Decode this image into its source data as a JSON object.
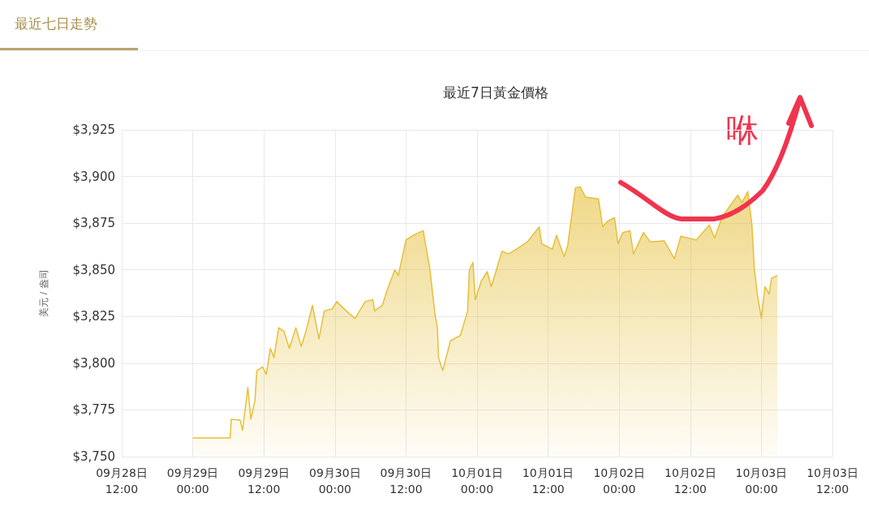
{
  "chart_data": {
    "type": "area",
    "title": "最近7日黃金價格",
    "subtitle": "最近七日走勢",
    "ylabel": "美元 / 盎司",
    "annotations": [
      "咻"
    ],
    "x": [
      "--09-29T00:00",
      "--09-29T06:18",
      "--09-29T06:30",
      "--09-29T08:00",
      "--09-29T08:24",
      "--09-29T09:18",
      "--09-29T09:48",
      "--09-29T10:30",
      "--09-29T10:48",
      "--09-29T11:48",
      "--09-29T12:24",
      "--09-29T13:06",
      "--09-29T13:42",
      "--09-29T14:30",
      "--09-29T15:24",
      "--09-29T16:18",
      "--09-29T17:24",
      "--09-29T18:18",
      "--09-29T19:06",
      "--09-29T20:12",
      "--09-29T21:18",
      "--09-29T22:12",
      "--09-29T23:30",
      "--09-30T00:18",
      "--09-30T01:54",
      "--09-30T03:24",
      "--09-30T05:06",
      "--09-30T06:24",
      "--09-30T06:42",
      "--09-30T08:00",
      "--09-30T08:48",
      "--09-30T10:06",
      "--09-30T10:42",
      "--09-30T12:00",
      "--09-30T13:12",
      "--09-30T14:54",
      "--09-30T15:12",
      "--09-30T16:00",
      "--09-30T16:54",
      "--09-30T17:18",
      "--09-30T17:30",
      "--09-30T18:12",
      "--09-30T19:30",
      "--09-30T21:12",
      "--09-30T22:24",
      "--09-30T22:42",
      "--09-30T23:18",
      "--09-30T23:42",
      "--10-01T00:42",
      "--10-01T01:42",
      "--10-01T02:24",
      "--10-01T04:12",
      "--10-01T05:18",
      "--10-01T06:36",
      "--10-01T08:30",
      "--10-01T10:30",
      "--10-01T10:54",
      "--10-01T12:42",
      "--10-01T13:24",
      "--10-01T14:42",
      "--10-01T15:18",
      "--10-01T16:36",
      "--10-01T17:24",
      "--10-01T18:18",
      "--10-01T20:30",
      "--10-01T21:12",
      "--10-01T22:00",
      "--10-01T23:12",
      "--10-01T23:48",
      "--10-02T00:36",
      "--10-02T01:48",
      "--10-02T02:24",
      "--10-02T04:06",
      "--10-02T05:12",
      "--10-02T07:36",
      "--10-02T09:18",
      "--10-02T10:24",
      "--10-02T13:00",
      "--10-02T15:12",
      "--10-02T16:06",
      "--10-02T17:24",
      "--10-02T20:00",
      "--10-02T20:42",
      "--10-02T21:42",
      "--10-02T22:24",
      "--10-02T22:48",
      "--10-02T23:18",
      "--10-03T00:00",
      "--10-03T00:36",
      "--10-03T01:18",
      "--10-03T01:42",
      "--10-03T02:42"
    ],
    "series": [
      {
        "color": "#e6bf3a",
        "values": [
          3760,
          3760,
          3770,
          3769.5,
          3764,
          3787,
          3770,
          3780,
          3796,
          3798,
          3794,
          3808,
          3803,
          3819,
          3817,
          3808,
          3819,
          3809,
          3817,
          3831,
          3813,
          3828,
          3829,
          3833,
          3828,
          3824,
          3833,
          3834,
          3828,
          3831,
          3839,
          3850,
          3847,
          3866,
          3868.5,
          3871,
          3865.5,
          3851,
          3826,
          3819,
          3803,
          3796,
          3812,
          3815,
          3828,
          3850,
          3854,
          3834,
          3844,
          3849,
          3841,
          3860,
          3858.5,
          3861,
          3865,
          3873,
          3864,
          3861,
          3868.5,
          3857,
          3863,
          3894,
          3894.5,
          3889,
          3888,
          3873,
          3876,
          3878,
          3864,
          3870,
          3871,
          3858.5,
          3870,
          3865,
          3865.5,
          3856,
          3868,
          3866,
          3874,
          3867,
          3878.5,
          3890,
          3886,
          3892,
          3874,
          3851,
          3837,
          3824,
          3841,
          3837,
          3845.5,
          3847
        ]
      }
    ],
    "xlim": [
      "--09-28T12:00",
      "--10-03T12:00"
    ],
    "xticks": [
      {
        "value": "--09-28T12:00",
        "label": "09月28日\n12:00"
      },
      {
        "value": "--09-29T00:00",
        "label": "09月29日\n00:00"
      },
      {
        "value": "--09-29T12:00",
        "label": "09月29日\n12:00"
      },
      {
        "value": "--09-30T00:00",
        "label": "09月30日\n00:00"
      },
      {
        "value": "--09-30T12:00",
        "label": "09月30日\n12:00"
      },
      {
        "value": "--10-01T00:00",
        "label": "10月01日\n00:00"
      },
      {
        "value": "--10-01T12:00",
        "label": "10月01日\n12:00"
      },
      {
        "value": "--10-02T00:00",
        "label": "10月02日\n00:00"
      },
      {
        "value": "--10-02T12:00",
        "label": "10月02日\n12:00"
      },
      {
        "value": "--10-03T00:00",
        "label": "10月03日\n00:00"
      },
      {
        "value": "--10-03T12:00",
        "label": "10月03日\n12:00"
      }
    ],
    "ylim": [
      3750,
      3925
    ],
    "yticks": [
      {
        "value": 3750,
        "label": "$3,750"
      },
      {
        "value": 3775,
        "label": "$3,775"
      },
      {
        "value": 3800,
        "label": "$3,800"
      },
      {
        "value": 3825,
        "label": "$3,825"
      },
      {
        "value": 3850,
        "label": "$3,850"
      },
      {
        "value": 3875,
        "label": "$3,875"
      },
      {
        "value": 3900,
        "label": "$3,900"
      },
      {
        "value": 3925,
        "label": "$3,925"
      }
    ],
    "grid": true,
    "marker": "none"
  }
}
